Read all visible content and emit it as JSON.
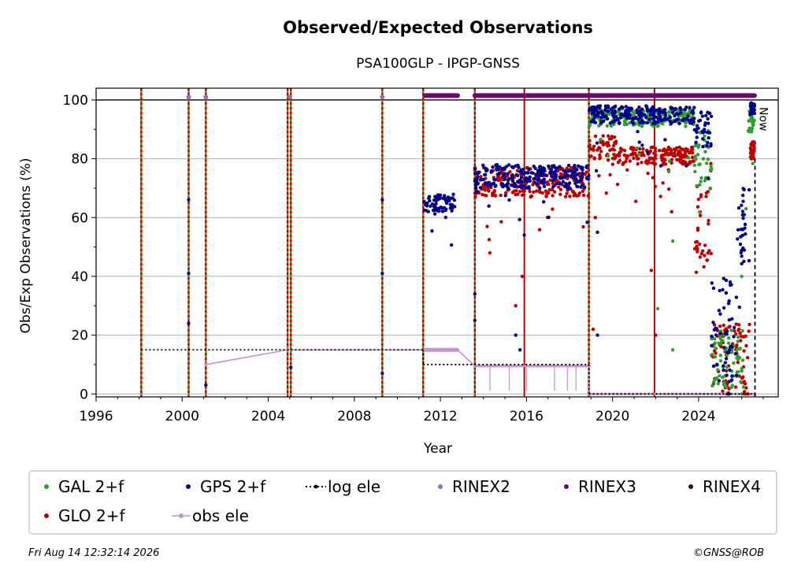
{
  "chart_data": {
    "type": "scatter",
    "title": "Observed/Expected Observations",
    "subtitle": "PSA100GLP - IPGP-GNSS",
    "xlabel": "Year",
    "ylabel": "Obs/Exp Observations (%)",
    "xlim": [
      1996,
      2027.7
    ],
    "ylim": [
      -1,
      104
    ],
    "x_ticks": [
      1996,
      2000,
      2004,
      2008,
      2012,
      2016,
      2020,
      2024
    ],
    "y_ticks": [
      0,
      20,
      40,
      60,
      80,
      100
    ],
    "grid": "horizontal",
    "legend_position": "bottom",
    "now_label": "Now",
    "now_x": 2026.62,
    "legend": [
      {
        "label": "GAL 2+f",
        "marker": "dot",
        "color": "#2ca02c"
      },
      {
        "label": "GPS 2+f",
        "marker": "dot",
        "color": "#00008b"
      },
      {
        "label": "log ele",
        "marker": "dotted-line",
        "color": "#000000"
      },
      {
        "label": "RINEX2",
        "marker": "dot",
        "color": "#8078c0"
      },
      {
        "label": "RINEX3",
        "marker": "dot",
        "color": "#6a0a6a"
      },
      {
        "label": "RINEX4",
        "marker": "dot",
        "color": "#2a0a2a"
      },
      {
        "label": "GLO 2+f",
        "marker": "dot",
        "color": "#c00000"
      },
      {
        "label": "obs ele",
        "marker": "line-dot",
        "color": "#c890d0"
      }
    ],
    "equipment_change_lines": [
      1998.1,
      2000.3,
      2001.1,
      2004.9,
      2005.05,
      2009.3,
      2011.2,
      2013.6,
      2018.9
    ],
    "glonass_only_lines": [
      2015.9,
      2021.95
    ],
    "series": [
      {
        "name": "GPS 2+f",
        "color": "#00008b",
        "segments": [
          {
            "x": [
              2011.2,
              2012.7
            ],
            "level": 65,
            "spread": 3
          },
          {
            "x": [
              2013.6,
              2018.9
            ],
            "level": 74,
            "spread": 4
          },
          {
            "x": [
              2018.9,
              2023.8
            ],
            "level": 95,
            "spread": 3
          },
          {
            "x": [
              2023.8,
              2024.6
            ],
            "level": 90,
            "spread": 6
          },
          {
            "x": [
              2024.6,
              2025.8
            ],
            "level": 22,
            "spread": 18
          },
          {
            "x": [
              2025.8,
              2026.4
            ],
            "level": 55,
            "spread": 15
          },
          {
            "x": [
              2026.4,
              2026.6
            ],
            "level": 97,
            "spread": 2
          }
        ],
        "isolated": [
          [
            2000.3,
            66
          ],
          [
            2000.3,
            41
          ],
          [
            2000.3,
            24
          ],
          [
            2001.1,
            3
          ],
          [
            2005.05,
            9
          ],
          [
            2009.3,
            66
          ],
          [
            2009.3,
            41
          ],
          [
            2009.3,
            7
          ],
          [
            2013.6,
            34
          ],
          [
            2013.6,
            25
          ],
          [
            2015.5,
            20
          ],
          [
            2015.7,
            15
          ],
          [
            2019.3,
            55
          ],
          [
            2019.3,
            20
          ]
        ]
      },
      {
        "name": "GLO 2+f",
        "color": "#c00000",
        "segments": [
          {
            "x": [
              2013.6,
              2018.9
            ],
            "level": 72,
            "spread": 5
          },
          {
            "x": [
              2018.9,
              2020.2
            ],
            "level": 84,
            "spread": 4
          },
          {
            "x": [
              2020.2,
              2023.8
            ],
            "level": 81,
            "spread": 3
          },
          {
            "x": [
              2023.8,
              2024.6
            ],
            "level": 60,
            "spread": 20
          },
          {
            "x": [
              2024.6,
              2026.4
            ],
            "level": 12,
            "spread": 12
          },
          {
            "x": [
              2026.4,
              2026.6
            ],
            "level": 83,
            "spread": 3
          }
        ],
        "isolated": [
          [
            2014.3,
            48
          ],
          [
            2015.5,
            30
          ],
          [
            2015.8,
            40
          ],
          [
            2019.1,
            22
          ],
          [
            2019.2,
            60
          ],
          [
            2021.8,
            42
          ],
          [
            2022.0,
            20
          ]
        ]
      },
      {
        "name": "GAL 2+f",
        "color": "#2ca02c",
        "segments": [
          {
            "x": [
              2018.9,
              2023.8
            ],
            "level": 94,
            "spread": 3
          },
          {
            "x": [
              2023.8,
              2024.6
            ],
            "level": 80,
            "spread": 10
          },
          {
            "x": [
              2024.6,
              2026.1
            ],
            "level": 12,
            "spread": 10
          },
          {
            "x": [
              2026.3,
              2026.6
            ],
            "level": 93,
            "spread": 4
          }
        ],
        "isolated": [
          [
            2022.1,
            29
          ],
          [
            2022.8,
            15
          ],
          [
            2022.8,
            52
          ],
          [
            2026.0,
            40
          ],
          [
            2026.2,
            63
          ]
        ]
      },
      {
        "name": "RINEX2",
        "color": "#8078c0",
        "points": [
          [
            2000.3,
            101
          ],
          [
            2001.1,
            101
          ],
          [
            2005.0,
            101
          ],
          [
            2009.3,
            101
          ]
        ]
      },
      {
        "name": "RINEX3",
        "color": "#6a0a6a",
        "bands": [
          [
            2011.3,
            2012.8,
            101.5
          ],
          [
            2013.6,
            2026.6,
            101.5
          ]
        ]
      },
      {
        "name": "log ele",
        "color": "#000000",
        "steps": [
          [
            1998.1,
            2011.2,
            15
          ],
          [
            2011.2,
            2018.9,
            10
          ],
          [
            2018.9,
            2026.6,
            0
          ]
        ]
      },
      {
        "name": "obs ele",
        "color": "#c890d0",
        "segments": [
          [
            2001.1,
            10
          ],
          [
            2004.9,
            15
          ],
          [
            2011.3,
            15
          ],
          [
            2012.8,
            15
          ],
          [
            2013.6,
            9.5
          ],
          [
            2018.9,
            9.5
          ],
          [
            2018.9,
            0
          ],
          [
            2026.6,
            0
          ]
        ],
        "dips": [
          2014.3,
          2015.2,
          2016.0,
          2017.3,
          2017.9,
          2018.3
        ]
      }
    ]
  },
  "footer": {
    "timestamp": "Fri Aug 14 12:32:14 2026",
    "copyright": "©GNSS@ROB"
  }
}
